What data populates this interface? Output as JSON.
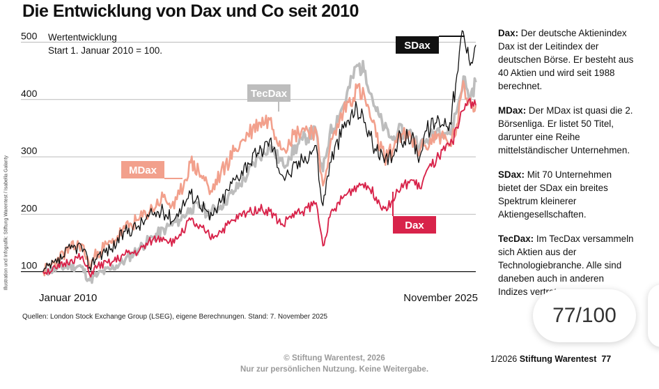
{
  "title": "Die Entwicklung von Dax und Co seit 2010",
  "side_credit": "Illustration und Infografik: Stiftung Warentest / Isabella Galanty",
  "chart_data": {
    "type": "line",
    "subtitle_line1": "Wertentwicklung",
    "subtitle_line2": "Start 1. Januar 2010 = 100.",
    "x_start_label": "Januar 2010",
    "x_end_label": "November 2025",
    "xlim": [
      2010.0,
      2025.85
    ],
    "ylim": [
      85,
      520
    ],
    "yticks": [
      100,
      200,
      300,
      400,
      500
    ],
    "series": [
      {
        "name": "SDax",
        "label": "SDax",
        "color": "#111111",
        "x": [
          2010.0,
          2010.5,
          2011.0,
          2011.4,
          2011.7,
          2012.0,
          2012.5,
          2013.0,
          2013.5,
          2014.0,
          2014.4,
          2014.8,
          2015.0,
          2015.4,
          2015.7,
          2016.0,
          2016.1,
          2016.5,
          2017.0,
          2017.5,
          2017.9,
          2018.3,
          2018.8,
          2019.0,
          2019.5,
          2020.0,
          2020.15,
          2020.25,
          2020.5,
          2021.0,
          2021.5,
          2021.8,
          2022.2,
          2022.5,
          2022.8,
          2023.0,
          2023.5,
          2023.8,
          2024.0,
          2024.5,
          2024.9,
          2025.2,
          2025.35,
          2025.6,
          2025.85
        ],
        "values": [
          100,
          115,
          140,
          145,
          108,
          130,
          140,
          170,
          180,
          200,
          205,
          190,
          210,
          235,
          225,
          205,
          190,
          220,
          260,
          290,
          305,
          330,
          265,
          270,
          295,
          320,
          245,
          215,
          290,
          350,
          385,
          360,
          310,
          290,
          300,
          330,
          335,
          300,
          345,
          365,
          360,
          450,
          520,
          470,
          495
        ]
      },
      {
        "name": "TecDax",
        "label": "TecDax",
        "color": "#bdbdbd",
        "x": [
          2010.0,
          2010.5,
          2011.0,
          2011.4,
          2011.7,
          2012.0,
          2012.5,
          2013.0,
          2013.5,
          2014.0,
          2014.5,
          2015.0,
          2015.4,
          2015.8,
          2016.0,
          2016.5,
          2017.0,
          2017.5,
          2017.9,
          2018.3,
          2018.8,
          2019.0,
          2019.5,
          2020.0,
          2020.15,
          2020.25,
          2020.5,
          2021.0,
          2021.5,
          2021.8,
          2022.2,
          2022.5,
          2022.8,
          2023.0,
          2023.5,
          2023.8,
          2024.0,
          2024.5,
          2024.9,
          2025.2,
          2025.4,
          2025.6,
          2025.85
        ],
        "values": [
          100,
          105,
          110,
          108,
          85,
          95,
          105,
          120,
          140,
          160,
          175,
          190,
          210,
          215,
          200,
          215,
          240,
          270,
          300,
          320,
          285,
          300,
          330,
          345,
          290,
          275,
          340,
          390,
          460,
          450,
          380,
          350,
          330,
          345,
          340,
          320,
          325,
          350,
          340,
          390,
          440,
          400,
          430
        ]
      },
      {
        "name": "MDax",
        "label": "MDax",
        "color": "#f2a08c",
        "x": [
          2010.0,
          2010.5,
          2011.0,
          2011.4,
          2011.7,
          2012.0,
          2012.5,
          2013.0,
          2013.5,
          2014.0,
          2014.4,
          2014.8,
          2015.0,
          2015.4,
          2015.7,
          2016.0,
          2016.1,
          2016.5,
          2017.0,
          2017.5,
          2017.9,
          2018.3,
          2018.8,
          2019.0,
          2019.5,
          2020.0,
          2020.15,
          2020.25,
          2020.5,
          2021.0,
          2021.5,
          2021.8,
          2022.2,
          2022.5,
          2022.8,
          2023.0,
          2023.5,
          2023.8,
          2024.0,
          2024.5,
          2024.9,
          2025.2,
          2025.35,
          2025.6,
          2025.85
        ],
        "values": [
          100,
          120,
          140,
          148,
          110,
          135,
          150,
          175,
          190,
          210,
          230,
          210,
          235,
          290,
          275,
          255,
          235,
          270,
          310,
          340,
          360,
          365,
          315,
          330,
          350,
          345,
          275,
          250,
          315,
          380,
          420,
          400,
          335,
          300,
          310,
          340,
          330,
          310,
          320,
          340,
          320,
          360,
          420,
          400,
          390
        ]
      },
      {
        "name": "Dax",
        "label": "Dax",
        "color": "#d8234a",
        "x": [
          2010.0,
          2010.5,
          2011.0,
          2011.4,
          2011.7,
          2012.0,
          2012.5,
          2013.0,
          2013.5,
          2014.0,
          2014.4,
          2014.8,
          2015.0,
          2015.4,
          2015.7,
          2016.0,
          2016.1,
          2016.5,
          2017.0,
          2017.5,
          2017.9,
          2018.3,
          2018.8,
          2019.0,
          2019.5,
          2020.0,
          2020.15,
          2020.25,
          2020.5,
          2021.0,
          2021.5,
          2021.8,
          2022.2,
          2022.5,
          2022.8,
          2023.0,
          2023.5,
          2023.8,
          2024.0,
          2024.5,
          2024.9,
          2025.2,
          2025.35,
          2025.6,
          2025.85
        ],
        "values": [
          100,
          105,
          120,
          125,
          95,
          110,
          115,
          130,
          135,
          155,
          160,
          150,
          165,
          190,
          175,
          170,
          160,
          170,
          190,
          205,
          210,
          205,
          180,
          195,
          205,
          220,
          175,
          145,
          195,
          230,
          250,
          255,
          230,
          210,
          225,
          240,
          260,
          245,
          270,
          300,
          320,
          350,
          380,
          400,
          390
        ]
      }
    ]
  },
  "side_notes": [
    {
      "term": "Dax:",
      "text": "Der deutsche Aktienindex Dax ist der Leitindex der deutschen Börse. Er besteht aus 40 Aktien und wird seit 1988 berechnet."
    },
    {
      "term": "MDax:",
      "text": "Der MDax ist quasi die 2. Börsenliga. Er listet 50 Titel, darunter eine Reihe mittelständischer Unternehmen."
    },
    {
      "term": "SDax:",
      "text": "Mit 70 Unternehmen bietet der SDax ein breites Spektrum kleinerer Aktiengesellschaften."
    },
    {
      "term": "TecDax:",
      "text": "Im TecDax versammeln sich Aktien aus der Technologiebranche. Alle sind daneben auch in anderen Indizes vertreten"
    }
  ],
  "source": "Quellen: London Stock Exchange Group (LSEG), eigene Berechnungen. Stand: 7. November 2025",
  "copyright_line1": "© Stiftung Warentest, 2026",
  "copyright_line2": "Nur zur persönlichen Nutzung. Keine Weitergabe.",
  "footer": {
    "issue": "1/2026",
    "brand": "Stiftung Warentest",
    "page": "77"
  },
  "score": "77/100"
}
